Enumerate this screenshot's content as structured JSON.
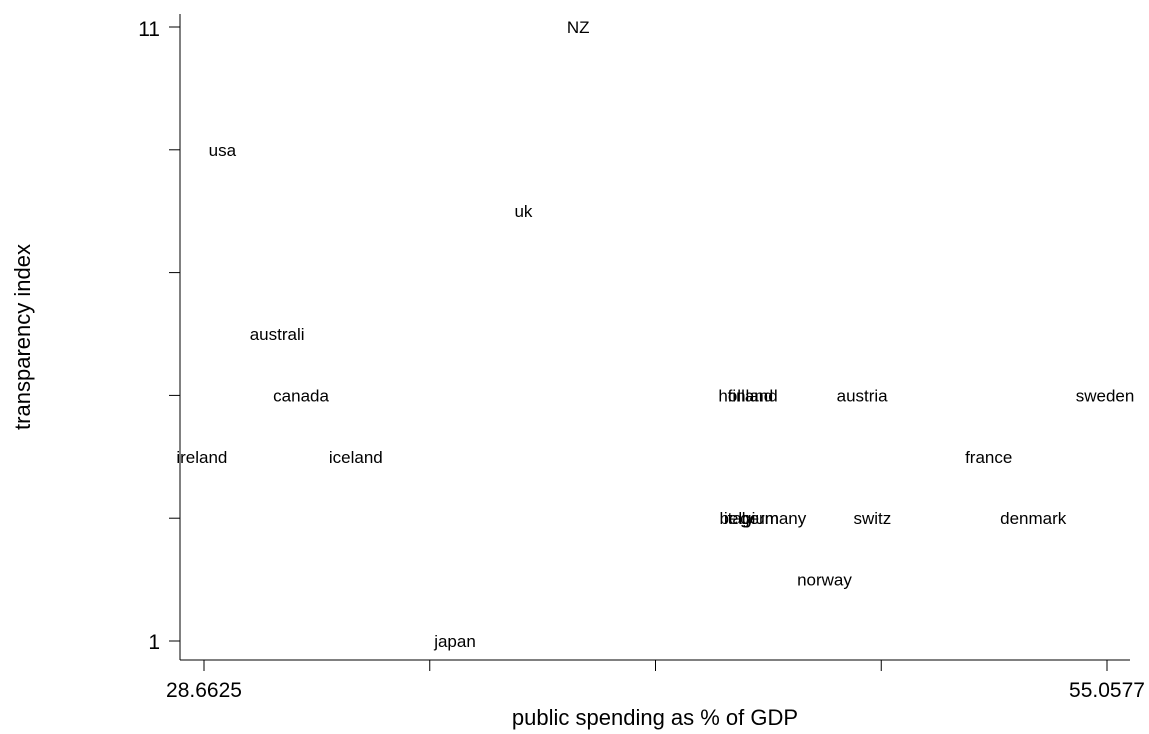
{
  "chart_data": {
    "type": "scatter",
    "title": "",
    "xlabel": "public spending as % of GDP",
    "ylabel": "transparency index",
    "xlim": [
      28.6625,
      55.0577
    ],
    "ylim": [
      1,
      11
    ],
    "x_tick_labels": [
      "28.6625",
      "55.0577"
    ],
    "y_tick_labels": [
      "1",
      "11"
    ],
    "grid": false,
    "points": [
      {
        "label": "NZ",
        "x": 39.6,
        "y": 11
      },
      {
        "label": "usa",
        "x": 29.2,
        "y": 9
      },
      {
        "label": "uk",
        "x": 38.0,
        "y": 8
      },
      {
        "label": "australi",
        "x": 30.8,
        "y": 6
      },
      {
        "label": "canada",
        "x": 31.5,
        "y": 5
      },
      {
        "label": "finland",
        "x": 44.7,
        "y": 5
      },
      {
        "label": "holland",
        "x": 44.5,
        "y": 5
      },
      {
        "label": "austria",
        "x": 47.9,
        "y": 5
      },
      {
        "label": "sweden",
        "x": 55.0,
        "y": 5
      },
      {
        "label": "ireland",
        "x": 28.6,
        "y": 4
      },
      {
        "label": "iceland",
        "x": 33.1,
        "y": 4
      },
      {
        "label": "france",
        "x": 51.6,
        "y": 4
      },
      {
        "label": "italy",
        "x": 44.3,
        "y": 3
      },
      {
        "label": "belgium",
        "x": 44.6,
        "y": 3
      },
      {
        "label": "germany",
        "x": 45.3,
        "y": 3
      },
      {
        "label": "switz",
        "x": 48.2,
        "y": 3
      },
      {
        "label": "denmark",
        "x": 52.9,
        "y": 3
      },
      {
        "label": "norway",
        "x": 46.8,
        "y": 2
      },
      {
        "label": "japan",
        "x": 36.0,
        "y": 1
      }
    ]
  }
}
